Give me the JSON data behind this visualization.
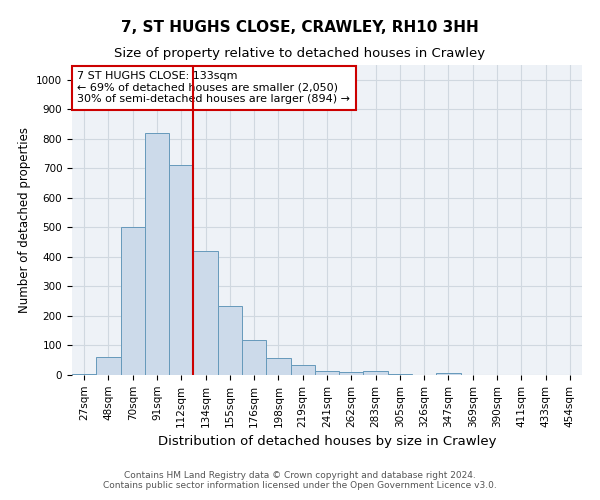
{
  "title": "7, ST HUGHS CLOSE, CRAWLEY, RH10 3HH",
  "subtitle": "Size of property relative to detached houses in Crawley",
  "xlabel": "Distribution of detached houses by size in Crawley",
  "ylabel": "Number of detached properties",
  "bar_color": "#ccdaea",
  "bar_edge_color": "#6699bb",
  "categories": [
    "27sqm",
    "48sqm",
    "70sqm",
    "91sqm",
    "112sqm",
    "134sqm",
    "155sqm",
    "176sqm",
    "198sqm",
    "219sqm",
    "241sqm",
    "262sqm",
    "283sqm",
    "305sqm",
    "326sqm",
    "347sqm",
    "369sqm",
    "390sqm",
    "411sqm",
    "433sqm",
    "454sqm"
  ],
  "values": [
    3,
    60,
    500,
    820,
    710,
    420,
    235,
    120,
    58,
    35,
    14,
    11,
    12,
    3,
    1,
    8,
    0,
    0,
    0,
    0,
    0
  ],
  "marker_index": 5,
  "marker_color": "#cc0000",
  "annotation_text": "7 ST HUGHS CLOSE: 133sqm\n← 69% of detached houses are smaller (2,050)\n30% of semi-detached houses are larger (894) →",
  "annotation_box_color": "#ffffff",
  "annotation_border_color": "#cc0000",
  "ylim": [
    0,
    1050
  ],
  "yticks": [
    0,
    100,
    200,
    300,
    400,
    500,
    600,
    700,
    800,
    900,
    1000
  ],
  "grid_color": "#d0d8e0",
  "bg_color": "#eef2f7",
  "footer_line1": "Contains HM Land Registry data © Crown copyright and database right 2024.",
  "footer_line2": "Contains public sector information licensed under the Open Government Licence v3.0.",
  "title_fontsize": 11,
  "subtitle_fontsize": 9.5,
  "xlabel_fontsize": 9.5,
  "ylabel_fontsize": 8.5,
  "tick_fontsize": 7.5,
  "footer_fontsize": 6.5
}
